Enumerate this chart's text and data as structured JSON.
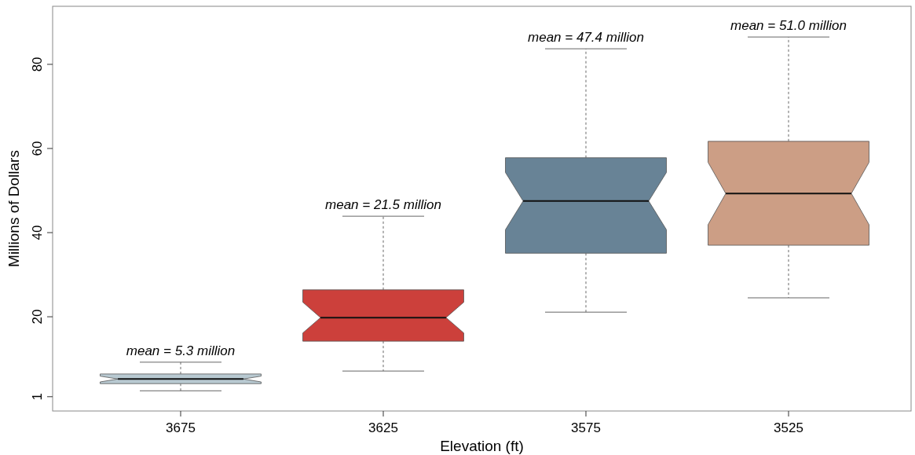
{
  "chart_data": {
    "type": "box",
    "xlabel": "Elevation (ft)",
    "ylabel": "Millions of Dollars",
    "categories": [
      "3675",
      "3625",
      "3575",
      "3525"
    ],
    "colors": [
      "#b8c9d1",
      "#cc403b",
      "#688396",
      "#cc9e85"
    ],
    "boxes": [
      {
        "low": 2.4,
        "q1": 4.1,
        "median": 5.2,
        "q3": 6.4,
        "high": 9.2
      },
      {
        "low": 7.1,
        "q1": 14.2,
        "median": 19.8,
        "q3": 26.4,
        "high": 43.9
      },
      {
        "low": 21.1,
        "q1": 35.1,
        "median": 47.5,
        "q3": 57.8,
        "high": 83.7
      },
      {
        "low": 24.5,
        "q1": 37.0,
        "median": 49.3,
        "q3": 61.7,
        "high": 86.5
      }
    ],
    "ylim": [
      -2.4,
      93.8
    ],
    "yticks": [
      1,
      20,
      40,
      60,
      80
    ],
    "grid": false,
    "annotations": [
      {
        "text": "mean = 5.3 million",
        "x": "3675",
        "y": 9.2
      },
      {
        "text": "mean = 21.5 million",
        "x": "3625",
        "y": 43.9
      },
      {
        "text": "mean = 47.4 million",
        "x": "3575",
        "y": 83.7
      },
      {
        "text": "mean = 51.0 million",
        "x": "3525",
        "y": 86.5
      }
    ]
  }
}
